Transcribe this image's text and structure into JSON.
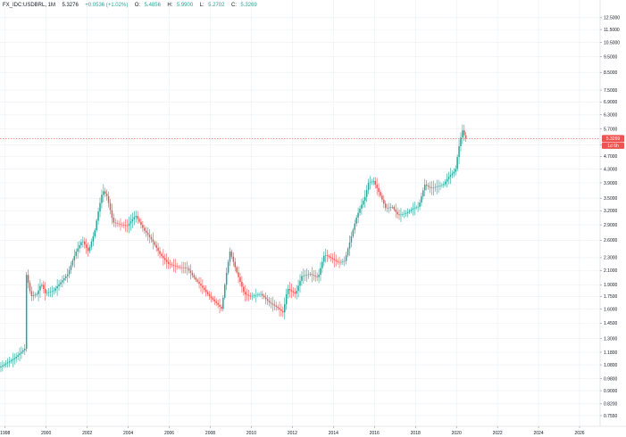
{
  "header": {
    "symbol": "FX_IDC:USDBRL, 1M",
    "last": "5.3276",
    "change": "+0.0536 (+1.02%)",
    "o_label": "O:",
    "o_value": "5.4856",
    "h_label": "H:",
    "h_value": "5.9900",
    "l_label": "L:",
    "l_value": "5.2702",
    "c_label": "C:",
    "c_value": "5.3269"
  },
  "price_tag": {
    "value": "5.3269",
    "countdown": "1d 6h"
  },
  "colors": {
    "up": "#26a69a",
    "down": "#ef5350",
    "grid": "#eceff3",
    "price_line": "#ef5350"
  },
  "chart_data": {
    "type": "candlestick",
    "scale": "log",
    "x_range": [
      1997.75,
      2027.0
    ],
    "y_range": [
      0.7,
      13.3
    ],
    "x_ticks": [
      "1998",
      "2000",
      "2002",
      "2004",
      "2006",
      "2008",
      "2010",
      "2012",
      "2014",
      "2016",
      "2018",
      "2020",
      "2022",
      "2024",
      "2026"
    ],
    "y_ticks": [
      "12.5000",
      "11.5000",
      "10.5000",
      "9.5000",
      "8.5000",
      "7.5000",
      "6.9000",
      "6.3000",
      "5.7000",
      "5.1000",
      "4.7000",
      "4.3000",
      "3.9000",
      "3.5000",
      "3.2000",
      "2.9000",
      "2.6000",
      "2.3000",
      "2.1000",
      "1.9000",
      "1.7500",
      "1.6000",
      "1.4500",
      "1.3000",
      "1.1800",
      "1.0800",
      "0.9800",
      "0.9000",
      "0.8200",
      "0.7550"
    ],
    "current_price": 5.3269,
    "anchors": [
      [
        1997.75,
        1.06
      ],
      [
        1998.5,
        1.13
      ],
      [
        1999.0,
        1.21
      ],
      [
        1999.05,
        2.08
      ],
      [
        1999.3,
        1.75
      ],
      [
        1999.6,
        1.78
      ],
      [
        1999.8,
        1.92
      ],
      [
        2000.0,
        1.79
      ],
      [
        2000.4,
        1.82
      ],
      [
        2000.8,
        1.95
      ],
      [
        2001.1,
        2.05
      ],
      [
        2001.5,
        2.4
      ],
      [
        2001.8,
        2.6
      ],
      [
        2002.1,
        2.4
      ],
      [
        2002.4,
        2.75
      ],
      [
        2002.8,
        3.7
      ],
      [
        2003.0,
        3.55
      ],
      [
        2003.3,
        2.95
      ],
      [
        2003.7,
        2.9
      ],
      [
        2004.0,
        2.88
      ],
      [
        2004.4,
        3.1
      ],
      [
        2004.8,
        2.8
      ],
      [
        2005.2,
        2.6
      ],
      [
        2005.6,
        2.35
      ],
      [
        2006.0,
        2.2
      ],
      [
        2006.5,
        2.15
      ],
      [
        2006.9,
        2.14
      ],
      [
        2007.3,
        1.98
      ],
      [
        2007.7,
        1.85
      ],
      [
        2008.0,
        1.75
      ],
      [
        2008.3,
        1.68
      ],
      [
        2008.6,
        1.6
      ],
      [
        2008.85,
        2.1
      ],
      [
        2009.0,
        2.4
      ],
      [
        2009.3,
        2.1
      ],
      [
        2009.7,
        1.78
      ],
      [
        2010.0,
        1.75
      ],
      [
        2010.5,
        1.78
      ],
      [
        2010.9,
        1.68
      ],
      [
        2011.3,
        1.62
      ],
      [
        2011.6,
        1.56
      ],
      [
        2011.8,
        1.85
      ],
      [
        2012.2,
        1.78
      ],
      [
        2012.5,
        2.02
      ],
      [
        2012.9,
        2.05
      ],
      [
        2013.3,
        2.0
      ],
      [
        2013.6,
        2.35
      ],
      [
        2013.9,
        2.3
      ],
      [
        2014.3,
        2.22
      ],
      [
        2014.6,
        2.25
      ],
      [
        2014.9,
        2.65
      ],
      [
        2015.2,
        3.1
      ],
      [
        2015.6,
        3.55
      ],
      [
        2015.75,
        3.9
      ],
      [
        2016.0,
        3.95
      ],
      [
        2016.3,
        3.6
      ],
      [
        2016.6,
        3.25
      ],
      [
        2016.9,
        3.3
      ],
      [
        2017.2,
        3.1
      ],
      [
        2017.6,
        3.15
      ],
      [
        2017.9,
        3.25
      ],
      [
        2018.2,
        3.3
      ],
      [
        2018.5,
        3.85
      ],
      [
        2018.8,
        3.75
      ],
      [
        2019.1,
        3.8
      ],
      [
        2019.4,
        3.85
      ],
      [
        2019.7,
        4.1
      ],
      [
        2019.9,
        4.2
      ],
      [
        2020.0,
        4.3
      ],
      [
        2020.2,
        5.2
      ],
      [
        2020.35,
        5.7
      ],
      [
        2020.45,
        5.33
      ]
    ]
  }
}
